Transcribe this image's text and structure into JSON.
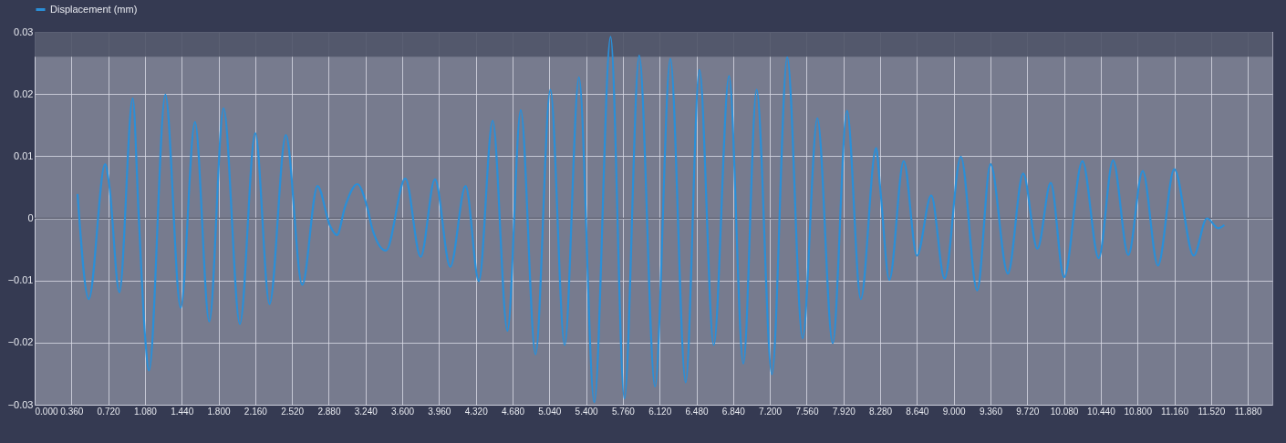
{
  "chart_data": {
    "type": "line",
    "legend": "top",
    "grid": true,
    "marker": "none",
    "line_style": "solid",
    "xlim": [
      0,
      12.12
    ],
    "ylim": [
      -0.03,
      0.03
    ],
    "xticks": [
      {
        "value": 0,
        "label": "0.000"
      },
      {
        "value": 0.36,
        "label": "0.360"
      },
      {
        "value": 0.72,
        "label": "0.720"
      },
      {
        "value": 1.08,
        "label": "1.080"
      },
      {
        "value": 1.44,
        "label": "1.440"
      },
      {
        "value": 1.8,
        "label": "1.800"
      },
      {
        "value": 2.16,
        "label": "2.160"
      },
      {
        "value": 2.52,
        "label": "2.520"
      },
      {
        "value": 2.88,
        "label": "2.880"
      },
      {
        "value": 3.24,
        "label": "3.240"
      },
      {
        "value": 3.6,
        "label": "3.600"
      },
      {
        "value": 3.96,
        "label": "3.960"
      },
      {
        "value": 4.32,
        "label": "4.320"
      },
      {
        "value": 4.68,
        "label": "4.680"
      },
      {
        "value": 5.04,
        "label": "5.040"
      },
      {
        "value": 5.4,
        "label": "5.400"
      },
      {
        "value": 5.76,
        "label": "5.760"
      },
      {
        "value": 6.12,
        "label": "6.120"
      },
      {
        "value": 6.48,
        "label": "6.480"
      },
      {
        "value": 6.84,
        "label": "6.840"
      },
      {
        "value": 7.2,
        "label": "7.200"
      },
      {
        "value": 7.56,
        "label": "7.560"
      },
      {
        "value": 7.92,
        "label": "7.920"
      },
      {
        "value": 8.28,
        "label": "8.280"
      },
      {
        "value": 8.64,
        "label": "8.640"
      },
      {
        "value": 9.0,
        "label": "9.000"
      },
      {
        "value": 9.36,
        "label": "9.360"
      },
      {
        "value": 9.72,
        "label": "9.720"
      },
      {
        "value": 10.08,
        "label": "10.080"
      },
      {
        "value": 10.44,
        "label": "10.440"
      },
      {
        "value": 10.8,
        "label": "10.800"
      },
      {
        "value": 11.16,
        "label": "11.160"
      },
      {
        "value": 11.52,
        "label": "11.520"
      },
      {
        "value": 11.88,
        "label": "11.880"
      }
    ],
    "yticks": [
      -0.03,
      -0.02,
      -0.01,
      0,
      0.01,
      0.02,
      0.03
    ],
    "bands": [
      {
        "axis": "y",
        "from": 0.026,
        "to": 0.03,
        "color": "#4f5468"
      }
    ],
    "series": [
      {
        "name": "Displacement (mm)",
        "color": "#2a8fd8",
        "x": [
          0.42,
          0.53,
          0.69,
          0.73,
          0.83,
          0.96,
          1.02,
          1.08,
          1.12,
          1.28,
          1.43,
          1.57,
          1.71,
          1.85,
          2.01,
          2.16,
          2.3,
          2.46,
          2.62,
          2.77,
          2.89,
          2.96,
          3.04,
          3.16,
          3.25,
          3.31,
          3.44,
          3.63,
          3.78,
          3.92,
          4.07,
          4.22,
          4.35,
          4.485,
          4.63,
          4.76,
          4.905,
          5.05,
          5.19,
          5.33,
          5.48,
          5.64,
          5.775,
          5.92,
          6.075,
          6.225,
          6.375,
          6.51,
          6.65,
          6.8,
          6.94,
          7.07,
          7.22,
          7.37,
          7.52,
          7.665,
          7.815,
          7.955,
          8.09,
          8.24,
          8.28,
          8.37,
          8.51,
          8.64,
          8.78,
          8.91,
          9.07,
          9.23,
          9.36,
          9.53,
          9.68,
          9.82,
          9.95,
          10.08,
          10.26,
          10.42,
          10.56,
          10.71,
          10.85,
          11.0,
          11.16,
          11.35,
          11.48,
          11.59,
          11.65
        ],
        "values": [
          0.0039,
          -0.013,
          0.0087,
          0.0054,
          -0.0119,
          0.0193,
          0,
          -0.0187,
          -0.0245,
          0.0199,
          -0.0144,
          0.0155,
          -0.0166,
          0.0177,
          -0.017,
          0.0137,
          -0.0138,
          0.0134,
          -0.0107,
          0.0052,
          -0.0011,
          -0.0027,
          0.0019,
          0.0055,
          0.0022,
          -0.0019,
          -0.0052,
          0.0064,
          -0.0062,
          0.0063,
          -0.0078,
          0.0052,
          -0.0101,
          0.0157,
          -0.0181,
          0.0174,
          -0.0219,
          0.0207,
          -0.0204,
          0.0227,
          -0.0296,
          0.0292,
          -0.029,
          0.0262,
          -0.0271,
          0.0257,
          -0.0264,
          0.0239,
          -0.0204,
          0.0229,
          -0.0234,
          0.0207,
          -0.0251,
          0.0259,
          -0.0193,
          0.0161,
          -0.0201,
          0.0173,
          -0.013,
          0.0113,
          0.0049,
          -0.0099,
          0.0092,
          -0.006,
          0.0037,
          -0.0097,
          0.0099,
          -0.0116,
          0.0087,
          -0.0089,
          0.0072,
          -0.0049,
          0.0057,
          -0.0095,
          0.0092,
          -0.0064,
          0.0093,
          -0.0059,
          0.0076,
          -0.0076,
          0.0079,
          -0.006,
          0,
          -0.0016,
          -0.0011
        ]
      }
    ]
  }
}
